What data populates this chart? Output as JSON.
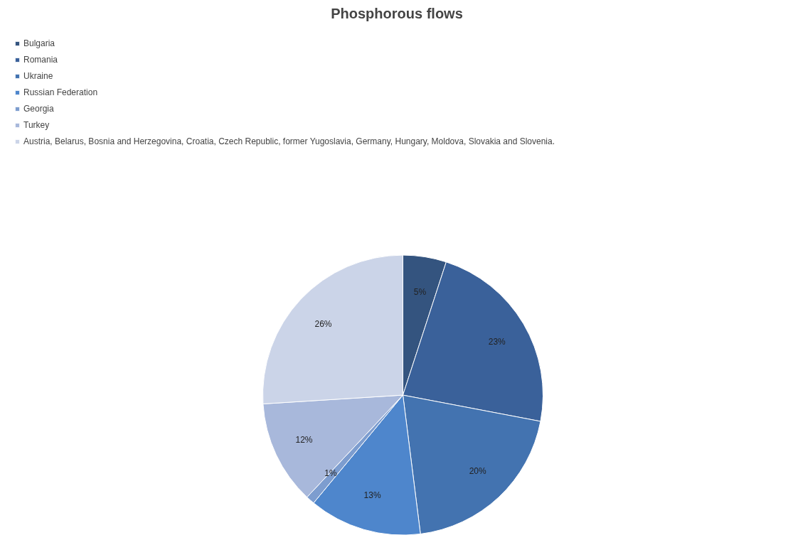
{
  "chart_data": {
    "type": "pie",
    "title": "Phosphorous flows",
    "categories": [
      "Bulgaria",
      "Romania",
      "Ukraine",
      "Russian Federation",
      "Georgia",
      "Turkey",
      "Austria, Belarus, Bosnia and Herzegovina, Croatia, Czech Republic, former Yugoslavia, Germany, Hungary, Moldova, Slovakia and Slovenia."
    ],
    "values": [
      5,
      23,
      20,
      13,
      1,
      12,
      26
    ],
    "value_labels": [
      "5%",
      "23%",
      "20%",
      "13%",
      "1%",
      "12%",
      "26%"
    ],
    "colors": [
      "#34547f",
      "#3a619a",
      "#4373b0",
      "#4e86cc",
      "#7d9dcf",
      "#a8b8db",
      "#cbd4e8"
    ],
    "legend": "top left"
  }
}
